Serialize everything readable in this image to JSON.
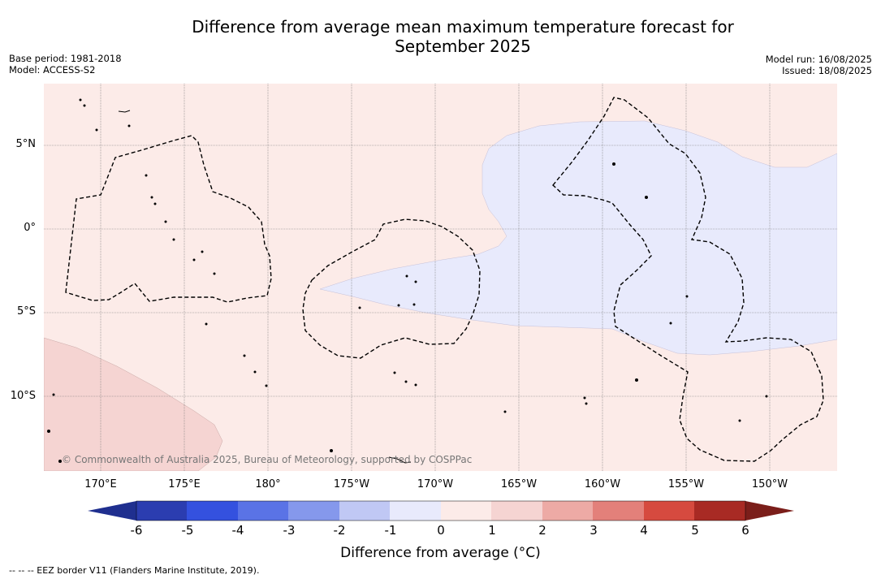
{
  "title": {
    "line1": "Difference from average mean maximum temperature forecast for",
    "line2": "September 2025"
  },
  "meta_left": {
    "base_period": "Base period: 1981-2018",
    "model": "Model: ACCESS-S2"
  },
  "meta_right": {
    "model_run": "Model run: 16/08/2025",
    "issued": "Issued: 18/08/2025"
  },
  "y_labels": [
    "5°N",
    "0°",
    "5°S",
    "10°S"
  ],
  "x_labels": [
    "170°E",
    "175°E",
    "180°",
    "175°W",
    "170°W",
    "165°W",
    "160°W",
    "155°W",
    "150°W"
  ],
  "copyright": "© Commonwealth of Australia 2025, Bureau of Meteorology, supported by COSPPac",
  "colorbar": {
    "label": "Difference from average (°C)",
    "ticks": [
      "-6",
      "-5",
      "-4",
      "-3",
      "-2",
      "-1",
      "0",
      "1",
      "2",
      "3",
      "4",
      "5",
      "6"
    ],
    "colors": [
      "#1f2f8f",
      "#2b3db0",
      "#3451df",
      "#5a73e6",
      "#8598ec",
      "#c0c8f4",
      "#e8eafc",
      "#fcebe8",
      "#f5d4d2",
      "#edaaa5",
      "#e3807a",
      "#d64a3f",
      "#a82a24",
      "#7b1e1a"
    ]
  },
  "footer": "--  --  -- EEZ border V11 (Flanders Marine Institute, 2019).",
  "map_colors": {
    "background": "#fcebe8",
    "cool": "#e8eafc",
    "warm": "#f5d4d2"
  }
}
